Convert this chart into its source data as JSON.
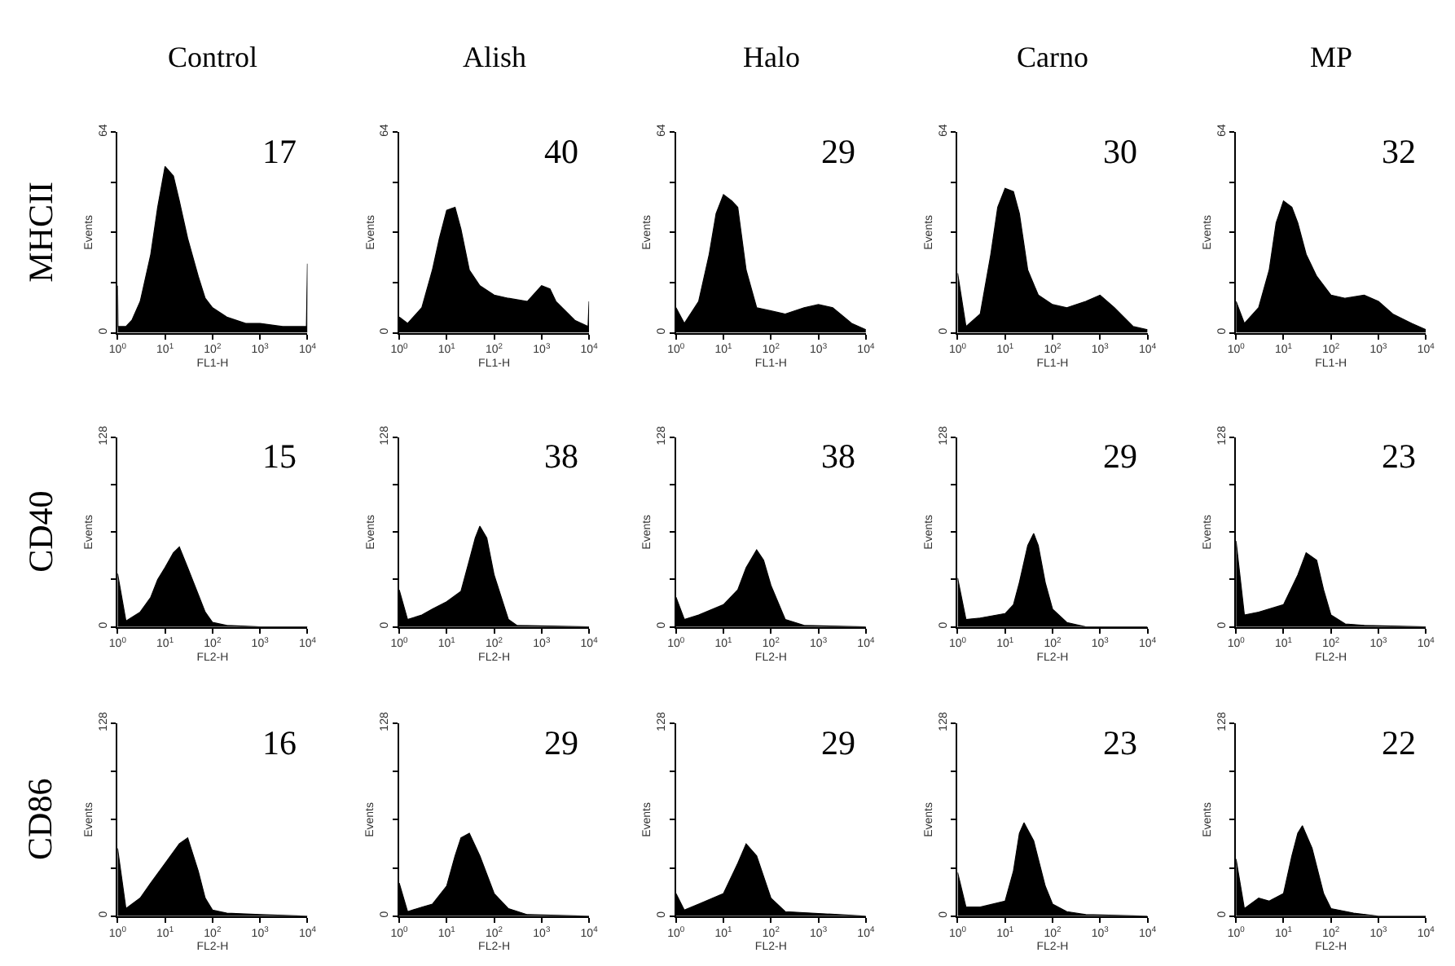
{
  "chart_data": [
    {
      "type": "area",
      "title": "Control",
      "xlabel": "FL1-H",
      "ylabel": "Events",
      "annotations": [
        "17",
        "MHCII"
      ],
      "log": "x",
      "xlim": [
        1,
        10000
      ],
      "xticks": [
        {
          "value": 1,
          "label": "10$^{0}$"
        },
        {
          "value": 10,
          "label": "10$^{1}$"
        },
        {
          "value": 100,
          "label": "10$^{2}$"
        },
        {
          "value": 1000,
          "label": "10$^{3}$"
        },
        {
          "value": 10000,
          "label": "10$^{4}$"
        }
      ],
      "ylim": [
        0,
        64
      ],
      "yticks": [
        0,
        {
          "value": 16,
          "label": null
        },
        {
          "value": 32,
          "label": null
        },
        {
          "value": 48,
          "label": null
        },
        64
      ],
      "color": "#000000",
      "x": [
        1,
        1.02,
        1.5,
        2,
        3,
        5,
        7,
        10,
        15,
        20,
        30,
        50,
        70,
        100,
        200,
        500,
        1000,
        3000,
        5000,
        9500,
        10000
      ],
      "values": [
        15,
        2,
        2,
        4,
        10,
        25,
        40,
        53,
        50,
        42,
        30,
        18,
        11,
        8,
        5,
        3,
        3,
        2,
        2,
        2,
        22
      ]
    },
    {
      "type": "area",
      "title": "Alish",
      "xlabel": "FL1-H",
      "ylabel": "Events",
      "annotations": [
        "40"
      ],
      "log": "x",
      "xlim": [
        1,
        10000
      ],
      "xticks": [
        {
          "value": 1,
          "label": "10$^{0}$"
        },
        {
          "value": 10,
          "label": "10$^{1}$"
        },
        {
          "value": 100,
          "label": "10$^{2}$"
        },
        {
          "value": 1000,
          "label": "10$^{3}$"
        },
        {
          "value": 10000,
          "label": "10$^{4}$"
        }
      ],
      "ylim": [
        0,
        64
      ],
      "yticks": [
        0,
        {
          "value": 16,
          "label": null
        },
        {
          "value": 32,
          "label": null
        },
        {
          "value": 48,
          "label": null
        },
        64
      ],
      "color": "#000000",
      "x": [
        1,
        1.5,
        3,
        5,
        7,
        10,
        15,
        20,
        30,
        50,
        100,
        200,
        500,
        1000,
        1500,
        2000,
        5000,
        9500,
        10000
      ],
      "values": [
        5,
        3,
        8,
        20,
        30,
        39,
        40,
        33,
        20,
        15,
        12,
        11,
        10,
        15,
        14,
        10,
        4,
        2,
        10
      ]
    },
    {
      "type": "area",
      "title": "Halo",
      "xlabel": "FL1-H",
      "ylabel": "Events",
      "annotations": [
        "29"
      ],
      "log": "x",
      "xlim": [
        1,
        10000
      ],
      "xticks": [
        {
          "value": 1,
          "label": "10$^{0}$"
        },
        {
          "value": 10,
          "label": "10$^{1}$"
        },
        {
          "value": 100,
          "label": "10$^{2}$"
        },
        {
          "value": 1000,
          "label": "10$^{3}$"
        },
        {
          "value": 10000,
          "label": "10$^{4}$"
        }
      ],
      "ylim": [
        0,
        64
      ],
      "yticks": [
        0,
        {
          "value": 16,
          "label": null
        },
        {
          "value": 32,
          "label": null
        },
        {
          "value": 48,
          "label": null
        },
        64
      ],
      "color": "#000000",
      "x": [
        1,
        1.5,
        3,
        5,
        7,
        10,
        15,
        20,
        30,
        50,
        100,
        200,
        500,
        1000,
        2000,
        5000,
        10000
      ],
      "values": [
        8,
        3,
        10,
        25,
        38,
        44,
        42,
        40,
        20,
        8,
        7,
        6,
        8,
        9,
        8,
        3,
        1
      ]
    },
    {
      "type": "area",
      "title": "Carno",
      "xlabel": "FL1-H",
      "ylabel": "Events",
      "annotations": [
        "30"
      ],
      "log": "x",
      "xlim": [
        1,
        10000
      ],
      "xticks": [
        {
          "value": 1,
          "label": "10$^{0}$"
        },
        {
          "value": 10,
          "label": "10$^{1}$"
        },
        {
          "value": 100,
          "label": "10$^{2}$"
        },
        {
          "value": 1000,
          "label": "10$^{3}$"
        },
        {
          "value": 10000,
          "label": "10$^{4}$"
        }
      ],
      "ylim": [
        0,
        64
      ],
      "yticks": [
        0,
        {
          "value": 16,
          "label": null
        },
        {
          "value": 32,
          "label": null
        },
        {
          "value": 48,
          "label": null
        },
        64
      ],
      "color": "#000000",
      "x": [
        1,
        1.5,
        3,
        5,
        7,
        10,
        15,
        20,
        30,
        50,
        100,
        200,
        500,
        1000,
        2000,
        5000,
        10000
      ],
      "values": [
        19,
        2,
        6,
        25,
        40,
        46,
        45,
        38,
        20,
        12,
        9,
        8,
        10,
        12,
        8,
        2,
        1
      ]
    },
    {
      "type": "area",
      "title": "MP",
      "xlabel": "FL1-H",
      "ylabel": "Events",
      "annotations": [
        "32"
      ],
      "log": "x",
      "xlim": [
        1,
        10000
      ],
      "xticks": [
        {
          "value": 1,
          "label": "10$^{0}$"
        },
        {
          "value": 10,
          "label": "10$^{1}$"
        },
        {
          "value": 100,
          "label": "10$^{2}$"
        },
        {
          "value": 1000,
          "label": "10$^{3}$"
        },
        {
          "value": 10000,
          "label": "10$^{4}$"
        }
      ],
      "ylim": [
        0,
        64
      ],
      "yticks": [
        0,
        {
          "value": 16,
          "label": null
        },
        {
          "value": 32,
          "label": null
        },
        {
          "value": 48,
          "label": null
        },
        64
      ],
      "color": "#000000",
      "x": [
        1,
        1.5,
        3,
        5,
        7,
        10,
        15,
        20,
        30,
        50,
        100,
        200,
        500,
        1000,
        2000,
        5000,
        10000
      ],
      "values": [
        10,
        3,
        8,
        20,
        35,
        42,
        40,
        35,
        25,
        18,
        12,
        11,
        12,
        10,
        6,
        3,
        1
      ]
    },
    {
      "type": "area",
      "xlabel": "FL2-H",
      "ylabel": "Events",
      "annotations": [
        "15",
        "CD40"
      ],
      "log": "x",
      "xlim": [
        1,
        10000
      ],
      "xticks": [
        {
          "value": 1,
          "label": "10$^{0}$"
        },
        {
          "value": 10,
          "label": "10$^{1}$"
        },
        {
          "value": 100,
          "label": "10$^{2}$"
        },
        {
          "value": 1000,
          "label": "10$^{3}$"
        },
        {
          "value": 10000,
          "label": "10$^{4}$"
        }
      ],
      "ylim": [
        0,
        128
      ],
      "yticks": [
        0,
        {
          "value": 32,
          "label": null
        },
        {
          "value": 64,
          "label": null
        },
        {
          "value": 96,
          "label": null
        },
        128
      ],
      "color": "#000000",
      "x": [
        1,
        1.5,
        3,
        5,
        7,
        10,
        15,
        20,
        30,
        50,
        70,
        100,
        200,
        1000,
        10000
      ],
      "values": [
        36,
        4,
        10,
        20,
        32,
        40,
        50,
        54,
        40,
        22,
        10,
        3,
        1,
        0,
        0
      ]
    },
    {
      "type": "area",
      "xlabel": "FL2-H",
      "ylabel": "Events",
      "annotations": [
        "38"
      ],
      "log": "x",
      "xlim": [
        1,
        10000
      ],
      "xticks": [
        {
          "value": 1,
          "label": "10$^{0}$"
        },
        {
          "value": 10,
          "label": "10$^{1}$"
        },
        {
          "value": 100,
          "label": "10$^{2}$"
        },
        {
          "value": 1000,
          "label": "10$^{3}$"
        },
        {
          "value": 10000,
          "label": "10$^{4}$"
        }
      ],
      "ylim": [
        0,
        128
      ],
      "yticks": [
        0,
        {
          "value": 32,
          "label": null
        },
        {
          "value": 64,
          "label": null
        },
        {
          "value": 96,
          "label": null
        },
        128
      ],
      "color": "#000000",
      "x": [
        1,
        1.5,
        3,
        5,
        10,
        20,
        30,
        40,
        50,
        70,
        100,
        200,
        300,
        10000
      ],
      "values": [
        25,
        5,
        8,
        12,
        17,
        24,
        45,
        60,
        68,
        60,
        35,
        5,
        1,
        0
      ]
    },
    {
      "type": "area",
      "xlabel": "FL2-H",
      "ylabel": "Events",
      "annotations": [
        "38"
      ],
      "log": "x",
      "xlim": [
        1,
        10000
      ],
      "xticks": [
        {
          "value": 1,
          "label": "10$^{0}$"
        },
        {
          "value": 10,
          "label": "10$^{1}$"
        },
        {
          "value": 100,
          "label": "10$^{2}$"
        },
        {
          "value": 1000,
          "label": "10$^{3}$"
        },
        {
          "value": 10000,
          "label": "10$^{4}$"
        }
      ],
      "ylim": [
        0,
        128
      ],
      "yticks": [
        0,
        {
          "value": 32,
          "label": null
        },
        {
          "value": 64,
          "label": null
        },
        {
          "value": 96,
          "label": null
        },
        128
      ],
      "color": "#000000",
      "x": [
        1,
        1.5,
        3,
        10,
        20,
        30,
        50,
        70,
        100,
        200,
        500,
        10000
      ],
      "values": [
        20,
        5,
        8,
        15,
        25,
        40,
        52,
        45,
        28,
        5,
        1,
        0
      ]
    },
    {
      "type": "area",
      "xlabel": "FL2-H",
      "ylabel": "Events",
      "annotations": [
        "29"
      ],
      "log": "x",
      "xlim": [
        1,
        10000
      ],
      "xticks": [
        {
          "value": 1,
          "label": "10$^{0}$"
        },
        {
          "value": 10,
          "label": "10$^{1}$"
        },
        {
          "value": 100,
          "label": "10$^{2}$"
        },
        {
          "value": 1000,
          "label": "10$^{3}$"
        },
        {
          "value": 10000,
          "label": "10$^{4}$"
        }
      ],
      "ylim": [
        0,
        128
      ],
      "yticks": [
        0,
        {
          "value": 32,
          "label": null
        },
        {
          "value": 64,
          "label": null
        },
        {
          "value": 96,
          "label": null
        },
        128
      ],
      "color": "#000000",
      "x": [
        1,
        1.5,
        3,
        10,
        15,
        20,
        30,
        40,
        50,
        70,
        100,
        200,
        500,
        10000
      ],
      "values": [
        33,
        5,
        6,
        9,
        15,
        30,
        55,
        63,
        55,
        30,
        12,
        3,
        0,
        0
      ]
    },
    {
      "type": "area",
      "xlabel": "FL2-H",
      "ylabel": "Events",
      "annotations": [
        "23"
      ],
      "log": "x",
      "xlim": [
        1,
        10000
      ],
      "xticks": [
        {
          "value": 1,
          "label": "10$^{0}$"
        },
        {
          "value": 10,
          "label": "10$^{1}$"
        },
        {
          "value": 100,
          "label": "10$^{2}$"
        },
        {
          "value": 1000,
          "label": "10$^{3}$"
        },
        {
          "value": 10000,
          "label": "10$^{4}$"
        }
      ],
      "ylim": [
        0,
        128
      ],
      "yticks": [
        0,
        {
          "value": 32,
          "label": null
        },
        {
          "value": 64,
          "label": null
        },
        {
          "value": 96,
          "label": null
        },
        128
      ],
      "color": "#000000",
      "x": [
        1,
        1.5,
        3,
        10,
        20,
        30,
        50,
        70,
        100,
        200,
        500,
        10000
      ],
      "values": [
        58,
        8,
        10,
        15,
        35,
        50,
        45,
        25,
        8,
        2,
        1,
        0
      ]
    },
    {
      "type": "area",
      "xlabel": "FL2-H",
      "ylabel": "Events",
      "annotations": [
        "16",
        "CD86"
      ],
      "log": "x",
      "xlim": [
        1,
        10000
      ],
      "xticks": [
        {
          "value": 1,
          "label": "10$^{0}$"
        },
        {
          "value": 10,
          "label": "10$^{1}$"
        },
        {
          "value": 100,
          "label": "10$^{2}$"
        },
        {
          "value": 1000,
          "label": "10$^{3}$"
        },
        {
          "value": 10000,
          "label": "10$^{4}$"
        }
      ],
      "ylim": [
        0,
        128
      ],
      "yticks": [
        0,
        {
          "value": 32,
          "label": null
        },
        {
          "value": 64,
          "label": null
        },
        {
          "value": 96,
          "label": null
        },
        128
      ],
      "color": "#000000",
      "x": [
        1,
        1.5,
        3,
        5,
        10,
        20,
        30,
        50,
        70,
        100,
        200,
        1000,
        10000
      ],
      "values": [
        45,
        5,
        12,
        22,
        35,
        48,
        52,
        30,
        12,
        4,
        2,
        1,
        0
      ]
    },
    {
      "type": "area",
      "xlabel": "FL2-H",
      "ylabel": "Events",
      "annotations": [
        "29"
      ],
      "log": "x",
      "xlim": [
        1,
        10000
      ],
      "xticks": [
        {
          "value": 1,
          "label": "10$^{0}$"
        },
        {
          "value": 10,
          "label": "10$^{1}$"
        },
        {
          "value": 100,
          "label": "10$^{2}$"
        },
        {
          "value": 1000,
          "label": "10$^{3}$"
        },
        {
          "value": 10000,
          "label": "10$^{4}$"
        }
      ],
      "ylim": [
        0,
        128
      ],
      "yticks": [
        0,
        {
          "value": 32,
          "label": null
        },
        {
          "value": 64,
          "label": null
        },
        {
          "value": 96,
          "label": null
        },
        128
      ],
      "color": "#000000",
      "x": [
        1,
        1.5,
        3,
        5,
        10,
        15,
        20,
        30,
        50,
        100,
        200,
        500,
        10000
      ],
      "values": [
        22,
        3,
        6,
        8,
        20,
        40,
        52,
        55,
        40,
        15,
        5,
        1,
        0
      ]
    },
    {
      "type": "area",
      "xlabel": "FL2-H",
      "ylabel": "Events",
      "annotations": [
        "29"
      ],
      "log": "x",
      "xlim": [
        1,
        10000
      ],
      "xticks": [
        {
          "value": 1,
          "label": "10$^{0}$"
        },
        {
          "value": 10,
          "label": "10$^{1}$"
        },
        {
          "value": 100,
          "label": "10$^{2}$"
        },
        {
          "value": 1000,
          "label": "10$^{3}$"
        },
        {
          "value": 10000,
          "label": "10$^{4}$"
        }
      ],
      "ylim": [
        0,
        128
      ],
      "yticks": [
        0,
        {
          "value": 32,
          "label": null
        },
        {
          "value": 64,
          "label": null
        },
        {
          "value": 96,
          "label": null
        },
        128
      ],
      "color": "#000000",
      "x": [
        1,
        1.5,
        3,
        10,
        20,
        30,
        50,
        100,
        200,
        10000
      ],
      "values": [
        15,
        4,
        8,
        15,
        35,
        48,
        40,
        12,
        3,
        0
      ]
    },
    {
      "type": "area",
      "xlabel": "FL2-H",
      "ylabel": "Events",
      "annotations": [
        "23"
      ],
      "log": "x",
      "xlim": [
        1,
        10000
      ],
      "xticks": [
        {
          "value": 1,
          "label": "10$^{0}$"
        },
        {
          "value": 10,
          "label": "10$^{1}$"
        },
        {
          "value": 100,
          "label": "10$^{2}$"
        },
        {
          "value": 1000,
          "label": "10$^{3}$"
        },
        {
          "value": 10000,
          "label": "10$^{4}$"
        }
      ],
      "ylim": [
        0,
        128
      ],
      "yticks": [
        0,
        {
          "value": 32,
          "label": null
        },
        {
          "value": 64,
          "label": null
        },
        {
          "value": 96,
          "label": null
        },
        128
      ],
      "color": "#000000",
      "x": [
        1,
        1.5,
        3,
        10,
        15,
        20,
        25,
        40,
        70,
        100,
        200,
        500,
        10000
      ],
      "values": [
        29,
        6,
        6,
        10,
        30,
        55,
        62,
        50,
        20,
        8,
        3,
        1,
        0
      ]
    },
    {
      "type": "area",
      "xlabel": "FL2-H",
      "ylabel": "Events",
      "annotations": [
        "22"
      ],
      "log": "x",
      "xlim": [
        1,
        10000
      ],
      "xticks": [
        {
          "value": 1,
          "label": "10$^{0}$"
        },
        {
          "value": 10,
          "label": "10$^{1}$"
        },
        {
          "value": 100,
          "label": "10$^{2}$"
        },
        {
          "value": 1000,
          "label": "10$^{3}$"
        },
        {
          "value": 10000,
          "label": "10$^{4}$"
        }
      ],
      "ylim": [
        0,
        128
      ],
      "yticks": [
        0,
        {
          "value": 32,
          "label": null
        },
        {
          "value": 64,
          "label": null
        },
        {
          "value": 96,
          "label": null
        },
        128
      ],
      "color": "#000000",
      "x": [
        1,
        1.5,
        3,
        5,
        10,
        15,
        20,
        25,
        40,
        70,
        100,
        300,
        1000,
        10000
      ],
      "values": [
        38,
        5,
        12,
        10,
        15,
        40,
        55,
        60,
        45,
        15,
        5,
        2,
        0,
        0
      ]
    }
  ]
}
